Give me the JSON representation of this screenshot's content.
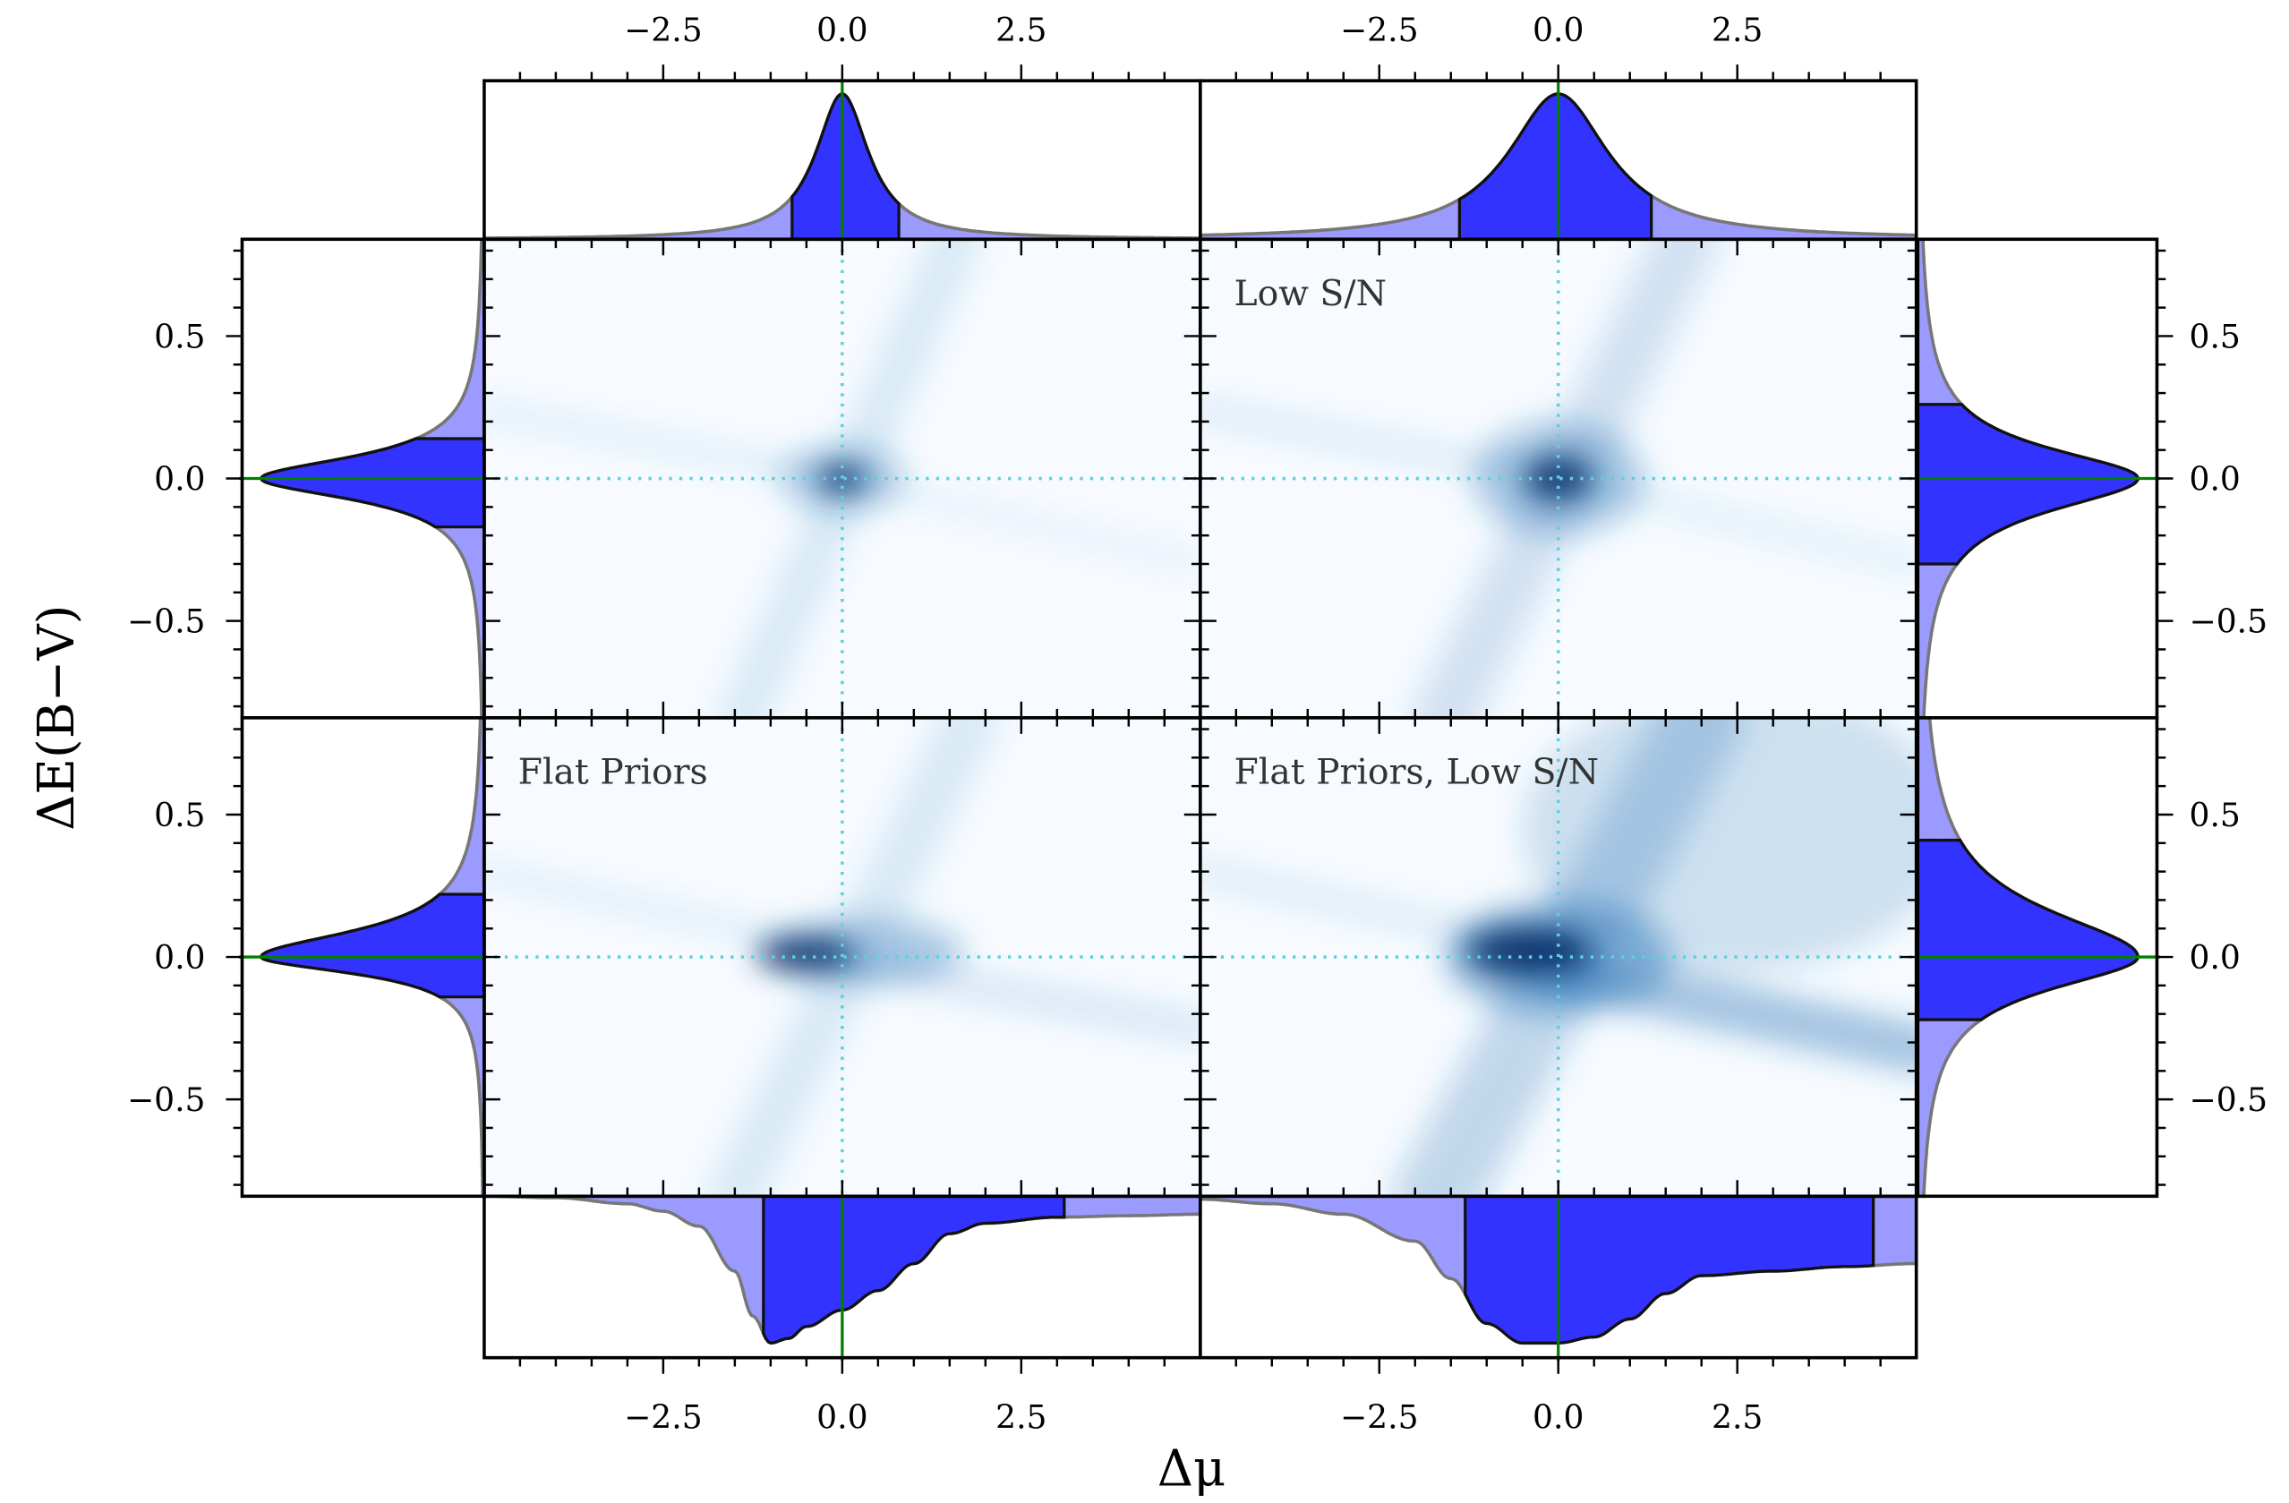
{
  "chart_data": {
    "type": "heatmap",
    "description_title": "",
    "xlabel": "Δμ",
    "ylabel": "ΔE(B−V)",
    "xlim": [
      -5,
      5
    ],
    "ylim": [
      -0.84,
      0.84
    ],
    "x_ticks": [
      "−2.5",
      "0.0",
      "2.5"
    ],
    "x_tick_values": [
      -2.5,
      0,
      2.5
    ],
    "x_minor_step": 0.5,
    "y_ticks": [
      "0.5",
      "0.0",
      "−0.5"
    ],
    "y_tick_values": [
      0.5,
      0,
      -0.5
    ],
    "y_minor_step": 0.1,
    "colormap": [
      "#f7fbff",
      "#08306b"
    ],
    "reference_line_color": "#5fd0dc",
    "marginal_colors": {
      "light": "#9b9bff",
      "dark": "#3333ff",
      "reference": "#008000"
    },
    "panels": [
      {
        "label": "",
        "heatmap": [
          {
            "type": "ridge",
            "x1": -5,
            "y1": 0.24,
            "x2": 0,
            "y2": 0,
            "width": 0.25,
            "intensity": 0.12
          },
          {
            "type": "ridge",
            "x1": 0,
            "y1": 0,
            "x2": 5,
            "y2": -0.3,
            "width": 0.25,
            "intensity": 0.08
          },
          {
            "type": "ridge",
            "x1": -1.4,
            "y1": -0.84,
            "x2": 1.6,
            "y2": 0.84,
            "width": 0.7,
            "intensity": 0.12
          },
          {
            "type": "blob",
            "x": 0,
            "y": 0,
            "sx": 0.9,
            "sy": 0.12,
            "intensity": 0.3
          },
          {
            "type": "blob",
            "x": 0,
            "y": 0,
            "sx": 0.35,
            "sy": 0.05,
            "intensity": 0.95
          }
        ],
        "marginal_x": {
          "model": "cauchy",
          "center": 0,
          "gamma_neg": 0.45,
          "gamma_pos": 0.45,
          "interval": [
            -0.7,
            0.79
          ]
        },
        "marginal_y": {
          "model": "cauchy",
          "center": 0,
          "gamma_neg": 0.09,
          "gamma_pos": 0.093,
          "interval": [
            -0.17,
            0.14
          ]
        }
      },
      {
        "label": "Low S/N",
        "heatmap": [
          {
            "type": "ridge",
            "x1": -5,
            "y1": 0.24,
            "x2": 0,
            "y2": 0,
            "width": 0.3,
            "intensity": 0.14
          },
          {
            "type": "ridge",
            "x1": 0,
            "y1": 0,
            "x2": 5,
            "y2": -0.3,
            "width": 0.3,
            "intensity": 0.1
          },
          {
            "type": "ridge",
            "x1": -1.6,
            "y1": -0.84,
            "x2": 1.8,
            "y2": 0.84,
            "width": 0.9,
            "intensity": 0.18
          },
          {
            "type": "blob",
            "x": 0,
            "y": 0,
            "sx": 1.2,
            "sy": 0.2,
            "intensity": 0.35
          },
          {
            "type": "blob",
            "x": 0,
            "y": 0,
            "sx": 0.5,
            "sy": 0.08,
            "intensity": 0.9
          }
        ],
        "marginal_x": {
          "model": "cauchy",
          "center": 0,
          "gamma_neg": 0.85,
          "gamma_pos": 0.85,
          "interval": [
            -1.38,
            1.3
          ]
        },
        "marginal_y": {
          "model": "cauchy",
          "center": 0,
          "gamma_neg": 0.14,
          "gamma_pos": 0.13,
          "interval": [
            -0.3,
            0.26
          ]
        }
      },
      {
        "label": "Flat Priors",
        "heatmap": [
          {
            "type": "ridge",
            "x1": -5,
            "y1": 0.3,
            "x2": 0,
            "y2": 0.02,
            "width": 0.25,
            "intensity": 0.12
          },
          {
            "type": "ridge",
            "x1": 0,
            "y1": -0.02,
            "x2": 5,
            "y2": -0.25,
            "width": 0.35,
            "intensity": 0.18
          },
          {
            "type": "ridge",
            "x1": -1.5,
            "y1": -0.84,
            "x2": 1.8,
            "y2": 0.84,
            "width": 0.8,
            "intensity": 0.12
          },
          {
            "type": "blob",
            "x": 0.3,
            "y": 0.02,
            "sx": 1.4,
            "sy": 0.12,
            "intensity": 0.35
          },
          {
            "type": "blob",
            "x": -0.5,
            "y": 0.01,
            "sx": 0.7,
            "sy": 0.06,
            "intensity": 0.95
          }
        ],
        "marginal_x": {
          "model": "sampled",
          "x": [
            -5,
            -4,
            -3,
            -2.5,
            -2,
            -1.5,
            -1.25,
            -1,
            -0.75,
            -0.5,
            0,
            0.5,
            1,
            1.5,
            2,
            3,
            4,
            5
          ],
          "y": [
            0,
            0.01,
            0.05,
            0.1,
            0.2,
            0.5,
            0.8,
            0.98,
            0.95,
            0.87,
            0.76,
            0.63,
            0.45,
            0.25,
            0.18,
            0.14,
            0.13,
            0.12
          ],
          "interval": [
            -1.1,
            3.1
          ]
        },
        "marginal_y": {
          "model": "cauchy",
          "center": 0,
          "gamma_neg": 0.07,
          "gamma_pos": 0.11,
          "interval": [
            -0.14,
            0.22
          ]
        }
      },
      {
        "label": "Flat Priors, Low S/N",
        "heatmap": [
          {
            "type": "blob",
            "x": 2.5,
            "y": 0.45,
            "sx": 3.0,
            "sy": 0.5,
            "intensity": 0.2
          },
          {
            "type": "ridge",
            "x1": -5,
            "y1": 0.3,
            "x2": 0,
            "y2": 0.02,
            "width": 0.3,
            "intensity": 0.14
          },
          {
            "type": "ridge",
            "x1": 0,
            "y1": -0.05,
            "x2": 5,
            "y2": -0.32,
            "width": 0.7,
            "intensity": 0.4
          },
          {
            "type": "ridge",
            "x1": -1.7,
            "y1": -0.84,
            "x2": 2.0,
            "y2": 0.84,
            "width": 1.2,
            "intensity": 0.25
          },
          {
            "type": "blob",
            "x": 0,
            "y": 0,
            "sx": 1.6,
            "sy": 0.2,
            "intensity": 0.45
          },
          {
            "type": "blob",
            "x": -0.4,
            "y": 0.02,
            "sx": 0.9,
            "sy": 0.09,
            "intensity": 0.95
          }
        ],
        "marginal_x": {
          "model": "sampled",
          "x": [
            -5,
            -4,
            -3,
            -2,
            -1.5,
            -1,
            -0.5,
            0,
            0.5,
            1,
            1.5,
            2,
            3,
            4,
            5
          ],
          "y": [
            0.02,
            0.05,
            0.12,
            0.3,
            0.55,
            0.85,
            0.98,
            0.98,
            0.94,
            0.82,
            0.65,
            0.53,
            0.5,
            0.47,
            0.45
          ],
          "interval": [
            -1.3,
            4.4
          ]
        },
        "marginal_y": {
          "model": "cauchy",
          "center": 0,
          "gamma_neg": 0.14,
          "gamma_pos": 0.2,
          "interval": [
            -0.22,
            0.41
          ]
        }
      }
    ]
  }
}
